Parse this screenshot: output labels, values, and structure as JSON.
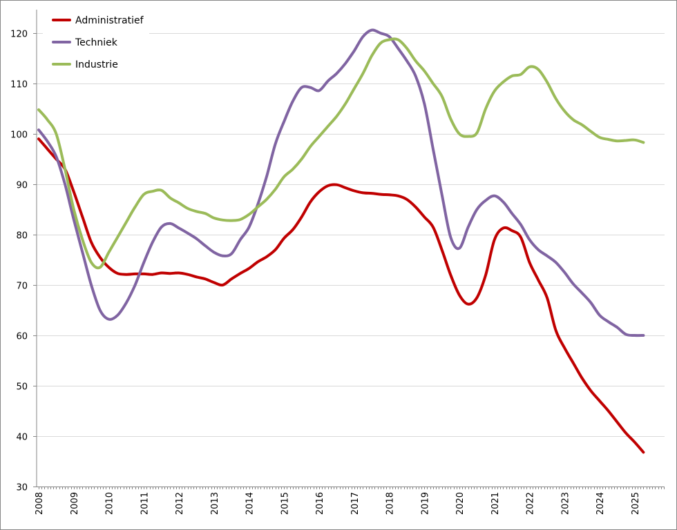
{
  "chart_data": {
    "type": "line",
    "title": "",
    "xlabel": "",
    "ylabel": "",
    "ylim": [
      30,
      120
    ],
    "yticks": [
      "30",
      "40",
      "50",
      "60",
      "70",
      "80",
      "90",
      "100",
      "110",
      "120"
    ],
    "xticks": [
      "2008",
      "2009",
      "2010",
      "2011",
      "2012",
      "2013",
      "2014",
      "2015",
      "2016",
      "2017",
      "2018",
      "2019",
      "2020",
      "2021",
      "2022",
      "2023",
      "2024",
      "2025"
    ],
    "grid": true,
    "legend_position": "top-left",
    "x": [
      2008.0,
      2008.25,
      2008.5,
      2008.75,
      2009.0,
      2009.25,
      2009.5,
      2009.75,
      2010.0,
      2010.25,
      2010.5,
      2010.75,
      2011.0,
      2011.25,
      2011.5,
      2011.75,
      2012.0,
      2012.25,
      2012.5,
      2012.75,
      2013.0,
      2013.25,
      2013.5,
      2013.75,
      2014.0,
      2014.25,
      2014.5,
      2014.75,
      2015.0,
      2015.25,
      2015.5,
      2015.75,
      2016.0,
      2016.25,
      2016.5,
      2016.75,
      2017.0,
      2017.25,
      2017.5,
      2017.75,
      2018.0,
      2018.25,
      2018.5,
      2018.75,
      2019.0,
      2019.25,
      2019.5,
      2019.75,
      2020.0,
      2020.25,
      2020.5,
      2020.75,
      2021.0,
      2021.25,
      2021.5,
      2021.75,
      2022.0,
      2022.25,
      2022.5,
      2022.75,
      2023.0,
      2023.25,
      2023.5,
      2023.75,
      2024.0,
      2024.25,
      2024.5,
      2024.75,
      2025.0,
      2025.25
    ],
    "series": [
      {
        "name": "Administratief",
        "color": "#c00000",
        "values": [
          99.0,
          97.0,
          95.0,
          93.0,
          88.5,
          83.5,
          78.5,
          75.5,
          73.5,
          72.3,
          72.1,
          72.2,
          72.2,
          72.1,
          72.4,
          72.3,
          72.4,
          72.1,
          71.6,
          71.2,
          70.5,
          70.0,
          71.2,
          72.3,
          73.3,
          74.6,
          75.6,
          77.0,
          79.3,
          81.0,
          83.5,
          86.5,
          88.5,
          89.7,
          89.9,
          89.3,
          88.7,
          88.3,
          88.2,
          88.0,
          87.9,
          87.7,
          87.0,
          85.5,
          83.5,
          81.5,
          77.0,
          72.0,
          68.0,
          66.2,
          67.5,
          72.0,
          79.0,
          81.3,
          80.8,
          79.5,
          74.5,
          71.0,
          67.5,
          61.0,
          57.5,
          54.5,
          51.5,
          49.0,
          47.0,
          45.0,
          42.8,
          40.6,
          38.8,
          36.8
        ]
      },
      {
        "name": "Techniek",
        "color": "#8064a2",
        "values": [
          100.8,
          98.5,
          95.5,
          90.0,
          83.0,
          76.5,
          70.0,
          65.0,
          63.2,
          64.0,
          66.5,
          70.0,
          74.5,
          78.5,
          81.5,
          82.2,
          81.3,
          80.3,
          79.2,
          77.8,
          76.5,
          75.8,
          76.2,
          79.0,
          81.5,
          86.0,
          91.5,
          98.0,
          102.5,
          106.5,
          109.2,
          109.2,
          108.6,
          110.5,
          112.0,
          114.0,
          116.5,
          119.3,
          120.6,
          120.0,
          119.3,
          117.0,
          114.5,
          111.5,
          106.0,
          97.0,
          88.0,
          79.5,
          77.3,
          81.5,
          85.0,
          86.8,
          87.7,
          86.5,
          84.2,
          82.0,
          79.0,
          77.0,
          75.8,
          74.5,
          72.5,
          70.2,
          68.4,
          66.5,
          64.0,
          62.7,
          61.6,
          60.2,
          60.0,
          60.0
        ]
      },
      {
        "name": "Industrie",
        "color": "#9bbb59",
        "values": [
          104.8,
          102.8,
          100.0,
          93.0,
          85.0,
          79.0,
          74.5,
          73.5,
          76.5,
          79.5,
          82.5,
          85.5,
          88.0,
          88.6,
          88.8,
          87.3,
          86.3,
          85.2,
          84.6,
          84.2,
          83.3,
          82.9,
          82.8,
          83.0,
          84.0,
          85.5,
          87.0,
          89.0,
          91.5,
          93.0,
          95.0,
          97.5,
          99.5,
          101.5,
          103.5,
          106.0,
          109.0,
          112.0,
          115.5,
          118.0,
          118.7,
          118.7,
          117.0,
          114.5,
          112.5,
          110.0,
          107.5,
          103.0,
          100.0,
          99.5,
          100.2,
          105.0,
          108.5,
          110.3,
          111.5,
          111.8,
          113.3,
          112.8,
          110.3,
          107.0,
          104.5,
          102.8,
          101.8,
          100.5,
          99.3,
          98.9,
          98.6,
          98.7,
          98.8,
          98.3
        ]
      }
    ]
  }
}
